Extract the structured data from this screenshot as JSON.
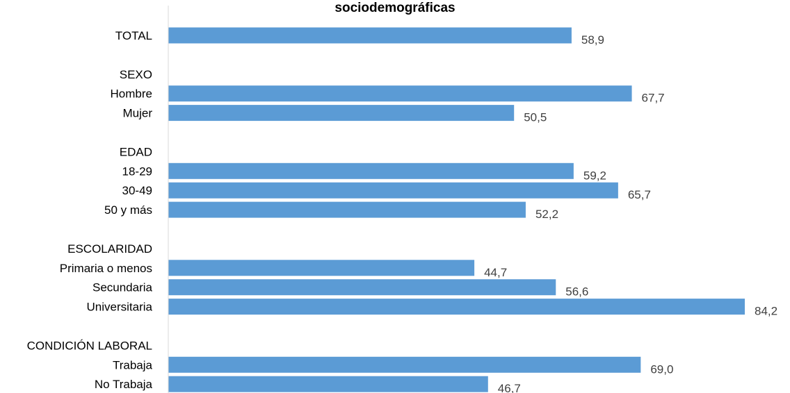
{
  "chart_data": {
    "type": "bar",
    "orientation": "horizontal",
    "title": "sociodemográficas",
    "rows": [
      {
        "label": "TOTAL",
        "value": 58.9,
        "value_label": "58,9"
      },
      {
        "label": "",
        "value": null,
        "value_label": ""
      },
      {
        "label": "SEXO",
        "value": null,
        "value_label": ""
      },
      {
        "label": "Hombre",
        "value": 67.7,
        "value_label": "67,7"
      },
      {
        "label": "Mujer",
        "value": 50.5,
        "value_label": "50,5"
      },
      {
        "label": "",
        "value": null,
        "value_label": ""
      },
      {
        "label": "EDAD",
        "value": null,
        "value_label": ""
      },
      {
        "label": "18-29",
        "value": 59.2,
        "value_label": "59,2"
      },
      {
        "label": "30-49",
        "value": 65.7,
        "value_label": "65,7"
      },
      {
        "label": "50 y más",
        "value": 52.2,
        "value_label": "52,2"
      },
      {
        "label": "",
        "value": null,
        "value_label": ""
      },
      {
        "label": "ESCOLARIDAD",
        "value": null,
        "value_label": ""
      },
      {
        "label": "Primaria o menos",
        "value": 44.7,
        "value_label": "44,7"
      },
      {
        "label": "Secundaria",
        "value": 56.6,
        "value_label": "56,6"
      },
      {
        "label": "Universitaria",
        "value": 84.2,
        "value_label": "84,2"
      },
      {
        "label": "",
        "value": null,
        "value_label": ""
      },
      {
        "label": "CONDICIÓN LABORAL",
        "value": null,
        "value_label": ""
      },
      {
        "label": "Trabaja",
        "value": 69.0,
        "value_label": "69,0"
      },
      {
        "label": "No Trabaja",
        "value": 46.7,
        "value_label": "46,7"
      }
    ],
    "xlim": [
      0,
      84.2
    ],
    "grid": false,
    "legend": "none",
    "bar_color": "#5B9BD5",
    "axis_color": "#D9D9D9"
  }
}
